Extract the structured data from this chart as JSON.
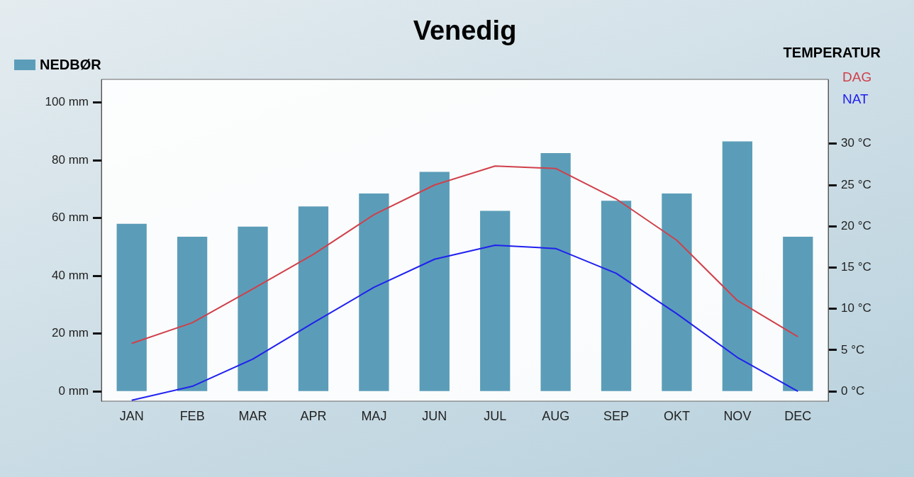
{
  "chart_data": {
    "type": "bar",
    "title": "Venedig",
    "y2label": "TEMPERATUR",
    "categories": [
      "JAN",
      "FEB",
      "MAR",
      "APR",
      "MAJ",
      "JUN",
      "JUL",
      "AUG",
      "SEP",
      "OKT",
      "NOV",
      "DEC"
    ],
    "series": [
      {
        "name": "NEDBØR",
        "color": "#5b9db8",
        "values": [
          58,
          53.5,
          57,
          64,
          68.5,
          76,
          62.5,
          82.5,
          66,
          68.5,
          86.5,
          53.5
        ]
      },
      {
        "name": "DAG",
        "type": "line",
        "axis": "y2",
        "color": "#d0404a",
        "values": [
          5.8,
          8.3,
          12.4,
          16.6,
          21.4,
          25,
          27.3,
          27,
          23.3,
          18.3,
          11,
          6.6
        ]
      },
      {
        "name": "NAT",
        "type": "line",
        "axis": "y2",
        "color": "#2020f0",
        "values": [
          -1.1,
          0.6,
          3.9,
          8.3,
          12.6,
          16,
          17.7,
          17.3,
          14.3,
          9.4,
          4.1,
          0
        ]
      }
    ],
    "ylim": [
      -3.4,
      108
    ],
    "yticks": [
      {
        "value": 0,
        "label": "0 mm"
      },
      {
        "value": 20,
        "label": "20 mm"
      },
      {
        "value": 40,
        "label": "40 mm"
      },
      {
        "value": 60,
        "label": "60 mm"
      },
      {
        "value": 80,
        "label": "80 mm"
      },
      {
        "value": 100,
        "label": "100 mm"
      }
    ],
    "y2lim": [
      -1.2,
      37.8
    ],
    "y2ticks": [
      {
        "value": 0,
        "label": "0 °C"
      },
      {
        "value": 5,
        "label": "5 °C"
      },
      {
        "value": 10,
        "label": "10 °C"
      },
      {
        "value": 15,
        "label": "15 °C"
      },
      {
        "value": 20,
        "label": "20 °C"
      },
      {
        "value": 25,
        "label": "25 °C"
      },
      {
        "value": 30,
        "label": "30 °C"
      }
    ],
    "grid": false,
    "legend": "top",
    "marker": "none",
    "line_style": "solid"
  }
}
